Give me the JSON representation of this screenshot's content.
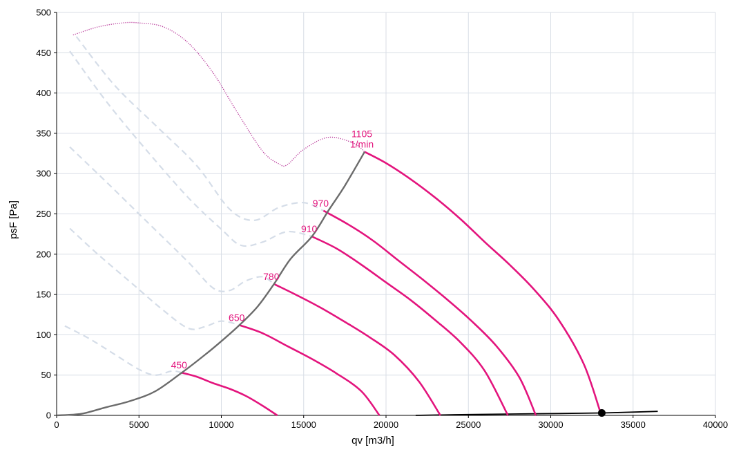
{
  "chart_data": {
    "type": "line",
    "xlabel": "qv [m3/h]",
    "ylabel": "psF [Pa]",
    "xlim": [
      0,
      40000
    ],
    "ylim": [
      0,
      500
    ],
    "xticks": [
      "0",
      "5000",
      "10000",
      "15000",
      "20000",
      "25000",
      "30000",
      "35000",
      "40000"
    ],
    "yticks": [
      "0",
      "50",
      "100",
      "150",
      "200",
      "250",
      "300",
      "350",
      "400",
      "450",
      "500"
    ],
    "grid": true,
    "colors": {
      "speed_curve": "#e3147d",
      "unstable_curve": "#d5dde8",
      "stall_limit": "#ba3d9c",
      "system_curve": "#6b6b6b",
      "operating_point": "#000000"
    },
    "series": [
      {
        "label": "450",
        "x": [
          7600,
          8500,
          9500,
          10500,
          11500,
          12500,
          13400
        ],
        "y": [
          53,
          48,
          40,
          33,
          24,
          12,
          0
        ]
      },
      {
        "label": "650",
        "x": [
          11100,
          12500,
          14000,
          15500,
          17000,
          18500,
          19600
        ],
        "y": [
          112,
          102,
          86,
          70,
          52,
          30,
          0
        ]
      },
      {
        "label": "780",
        "x": [
          13200,
          14500,
          16000,
          17500,
          19000,
          20500,
          22000,
          23300
        ],
        "y": [
          163,
          150,
          134,
          116,
          97,
          75,
          42,
          0
        ]
      },
      {
        "label": "910",
        "x": [
          15500,
          17000,
          18500,
          20000,
          21500,
          23000,
          24500,
          26000,
          27400
        ],
        "y": [
          222,
          207,
          187,
          165,
          143,
          118,
          91,
          55,
          0
        ]
      },
      {
        "label": "970",
        "x": [
          16200,
          17700,
          19200,
          20700,
          22200,
          23700,
          25200,
          26700,
          28100,
          29100
        ],
        "y": [
          254,
          237,
          217,
          193,
          169,
          144,
          117,
          86,
          47,
          0
        ]
      },
      {
        "label": "1105 1/min",
        "x": [
          18700,
          20000,
          21500,
          23000,
          24500,
          26000,
          27500,
          29000,
          30500,
          32000,
          33000
        ],
        "y": [
          327,
          313,
          293,
          270,
          244,
          215,
          187,
          156,
          118,
          64,
          5
        ]
      }
    ],
    "unstable_series": [
      {
        "label": "450",
        "x": [
          500,
          2000,
          3500,
          5000,
          6000,
          7000,
          7600
        ],
        "y": [
          111,
          95,
          76,
          57,
          50,
          55,
          53
        ]
      },
      {
        "label": "650",
        "x": [
          800,
          2500,
          4500,
          6500,
          8000,
          9000,
          10000,
          11100
        ],
        "y": [
          232,
          200,
          165,
          130,
          108,
          110,
          117,
          112
        ]
      },
      {
        "label": "780",
        "x": [
          800,
          3000,
          5500,
          8000,
          9500,
          10500,
          11500,
          12500,
          13200
        ],
        "y": [
          333,
          290,
          240,
          190,
          158,
          155,
          167,
          172,
          163
        ]
      },
      {
        "label": "910",
        "x": [
          800,
          3000,
          5500,
          8000,
          10000,
          11200,
          12500,
          14000,
          15500
        ],
        "y": [
          452,
          390,
          328,
          270,
          231,
          211,
          215,
          228,
          222
        ]
      },
      {
        "label": "970",
        "x": [
          1200,
          3500,
          6000,
          8500,
          10500,
          12000,
          13500,
          15000,
          16200
        ],
        "y": [
          470,
          410,
          360,
          310,
          256,
          242,
          258,
          264,
          254
        ]
      }
    ],
    "stall_limit": {
      "x": [
        1000,
        2500,
        4000,
        5000,
        6500,
        8000,
        9500,
        11000,
        12500,
        13500,
        14000,
        15000,
        16500,
        18000,
        18700
      ],
      "y": [
        472,
        482,
        487,
        487,
        482,
        462,
        425,
        375,
        328,
        312,
        311,
        330,
        345,
        338,
        327
      ]
    },
    "system_curve": {
      "x": [
        0,
        1500,
        3000,
        4500,
        6000,
        7600,
        9000,
        10000,
        11100,
        12200,
        13200,
        14200,
        15500,
        16500,
        17500,
        18700
      ],
      "y": [
        0,
        2,
        10,
        18,
        30,
        53,
        75,
        92,
        112,
        135,
        163,
        194,
        222,
        254,
        285,
        327
      ]
    },
    "operating_point": {
      "x": 33100,
      "y": 3
    },
    "baseline_curve": {
      "x": [
        21800,
        25000,
        29000,
        33100,
        36500
      ],
      "y": [
        0,
        1,
        2,
        3,
        5
      ]
    }
  }
}
